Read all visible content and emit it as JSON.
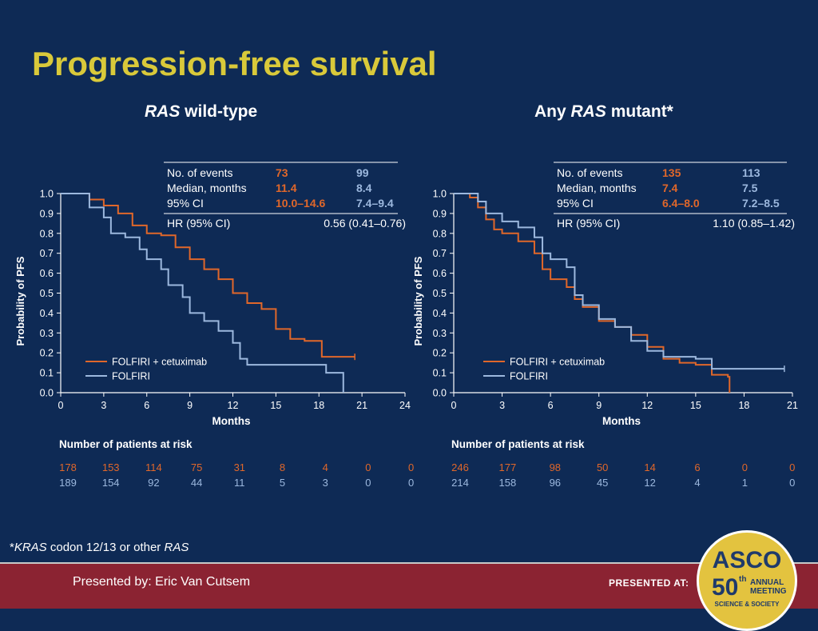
{
  "slide_title": "Progression-free survival",
  "panels": [
    {
      "subtitle_italic": "RAS",
      "subtitle_rest": " wild-type",
      "stats": {
        "rows": [
          {
            "label": "No. of events",
            "a": "73",
            "b": "99"
          },
          {
            "label": "Median, months",
            "a": "11.4",
            "b": "8.4"
          },
          {
            "label": "95% CI",
            "a": "10.0–14.6",
            "b": "7.4–9.4"
          }
        ],
        "hr_label": "HR (95% CI)",
        "hr_value": "0.56 (0.41–0.76)"
      },
      "risk_title": "Number of patients at risk",
      "risk_a": [
        "178",
        "153",
        "114",
        "75",
        "31",
        "8",
        "4",
        "0",
        "0"
      ],
      "risk_b": [
        "189",
        "154",
        "92",
        "44",
        "11",
        "5",
        "3",
        "0",
        "0"
      ]
    },
    {
      "subtitle_prefix": "Any ",
      "subtitle_italic": "RAS",
      "subtitle_rest": " mutant*",
      "stats": {
        "rows": [
          {
            "label": "No. of events",
            "a": "135",
            "b": "113"
          },
          {
            "label": "Median, months",
            "a": "7.4",
            "b": "7.5"
          },
          {
            "label": "95% CI",
            "a": "6.4–8.0",
            "b": "7.2–8.5"
          }
        ],
        "hr_label": "HR (95% CI)",
        "hr_value": "1.10 (0.85–1.42)"
      },
      "risk_title": "Number of patients at risk",
      "risk_a": [
        "246",
        "177",
        "98",
        "50",
        "14",
        "6",
        "0",
        "0"
      ],
      "risk_b": [
        "214",
        "158",
        "96",
        "45",
        "12",
        "4",
        "1",
        "0"
      ]
    }
  ],
  "colors": {
    "background": "#0e2a55",
    "title": "#d9c93a",
    "cetuximab": "#e0672a",
    "folfiri": "#9cb8de",
    "footer": "#8b2332",
    "asco_gold": "#e3c33f"
  },
  "chart_data": [
    {
      "type": "line",
      "step": true,
      "title": "RAS wild-type",
      "xlabel": "Months",
      "ylabel": "Probability of PFS",
      "xlim": [
        0,
        24
      ],
      "ylim": [
        0,
        1
      ],
      "xticks": [
        0,
        3,
        6,
        9,
        12,
        15,
        18,
        21,
        24
      ],
      "yticks": [
        0.0,
        0.1,
        0.2,
        0.3,
        0.4,
        0.5,
        0.6,
        0.7,
        0.8,
        0.9,
        1.0
      ],
      "legend_position": "bottom-left",
      "series": [
        {
          "name": "FOLFIRI + cetuximab",
          "color": "#e0672a",
          "points": [
            [
              0,
              1.0
            ],
            [
              1.5,
              1.0
            ],
            [
              2,
              0.97
            ],
            [
              3,
              0.94
            ],
            [
              4,
              0.9
            ],
            [
              5,
              0.84
            ],
            [
              6,
              0.8
            ],
            [
              7,
              0.79
            ],
            [
              8,
              0.73
            ],
            [
              9,
              0.67
            ],
            [
              10,
              0.62
            ],
            [
              11,
              0.57
            ],
            [
              12,
              0.5
            ],
            [
              13,
              0.45
            ],
            [
              14,
              0.42
            ],
            [
              15,
              0.32
            ],
            [
              16,
              0.27
            ],
            [
              17,
              0.26
            ],
            [
              18,
              0.26
            ],
            [
              18.2,
              0.18
            ],
            [
              20.5,
              0.18
            ]
          ]
        },
        {
          "name": "FOLFIRI",
          "color": "#9cb8de",
          "points": [
            [
              0,
              1.0
            ],
            [
              1.2,
              1.0
            ],
            [
              2,
              0.93
            ],
            [
              3,
              0.88
            ],
            [
              3.5,
              0.8
            ],
            [
              4.5,
              0.78
            ],
            [
              5.5,
              0.72
            ],
            [
              6,
              0.67
            ],
            [
              7,
              0.62
            ],
            [
              7.5,
              0.54
            ],
            [
              8.5,
              0.48
            ],
            [
              9,
              0.4
            ],
            [
              10,
              0.36
            ],
            [
              11,
              0.31
            ],
            [
              12,
              0.25
            ],
            [
              12.5,
              0.17
            ],
            [
              13,
              0.14
            ],
            [
              18,
              0.14
            ],
            [
              18.5,
              0.1
            ],
            [
              19.5,
              0.1
            ],
            [
              19.7,
              0.0
            ]
          ]
        }
      ]
    },
    {
      "type": "line",
      "step": true,
      "title": "Any RAS mutant*",
      "xlabel": "Months",
      "ylabel": "Probability of PFS",
      "xlim": [
        0,
        21
      ],
      "ylim": [
        0,
        1
      ],
      "xticks": [
        0,
        3,
        6,
        9,
        12,
        15,
        18,
        21
      ],
      "yticks": [
        0.0,
        0.1,
        0.2,
        0.3,
        0.4,
        0.5,
        0.6,
        0.7,
        0.8,
        0.9,
        1.0
      ],
      "legend_position": "bottom-left",
      "series": [
        {
          "name": "FOLFIRI + cetuximab",
          "color": "#e0672a",
          "points": [
            [
              0,
              1.0
            ],
            [
              1,
              0.98
            ],
            [
              1.5,
              0.93
            ],
            [
              2,
              0.87
            ],
            [
              2.5,
              0.82
            ],
            [
              3,
              0.8
            ],
            [
              4,
              0.76
            ],
            [
              5,
              0.7
            ],
            [
              5.5,
              0.62
            ],
            [
              6,
              0.57
            ],
            [
              7,
              0.53
            ],
            [
              7.5,
              0.47
            ],
            [
              8,
              0.43
            ],
            [
              9,
              0.36
            ],
            [
              10,
              0.33
            ],
            [
              11,
              0.29
            ],
            [
              12,
              0.23
            ],
            [
              13,
              0.17
            ],
            [
              14,
              0.15
            ],
            [
              15,
              0.14
            ],
            [
              16,
              0.09
            ],
            [
              17,
              0.08
            ],
            [
              17.1,
              0.0
            ]
          ]
        },
        {
          "name": "FOLFIRI",
          "color": "#9cb8de",
          "points": [
            [
              0,
              1.0
            ],
            [
              1,
              1.0
            ],
            [
              1.5,
              0.96
            ],
            [
              2,
              0.9
            ],
            [
              3,
              0.86
            ],
            [
              4,
              0.83
            ],
            [
              5,
              0.78
            ],
            [
              5.5,
              0.7
            ],
            [
              6,
              0.67
            ],
            [
              7,
              0.63
            ],
            [
              7.5,
              0.49
            ],
            [
              8,
              0.44
            ],
            [
              9,
              0.37
            ],
            [
              10,
              0.33
            ],
            [
              11,
              0.26
            ],
            [
              12,
              0.21
            ],
            [
              13,
              0.18
            ],
            [
              15,
              0.17
            ],
            [
              16,
              0.12
            ],
            [
              20.5,
              0.12
            ]
          ]
        }
      ]
    }
  ],
  "footnote_italic": "KRAS",
  "footnote_rest": " codon 12/13 or other ",
  "footnote_italic2": "RAS",
  "footnote_prefix": "*",
  "presenter": "Presented by: Eric Van Cutsem",
  "presented_at": "PRESENTED AT:",
  "asco": {
    "name": "ASCO",
    "number": "50",
    "superscript": "th",
    "line1": "ANNUAL",
    "line2": "MEETING",
    "tagline": "SCIENCE & SOCIETY"
  }
}
